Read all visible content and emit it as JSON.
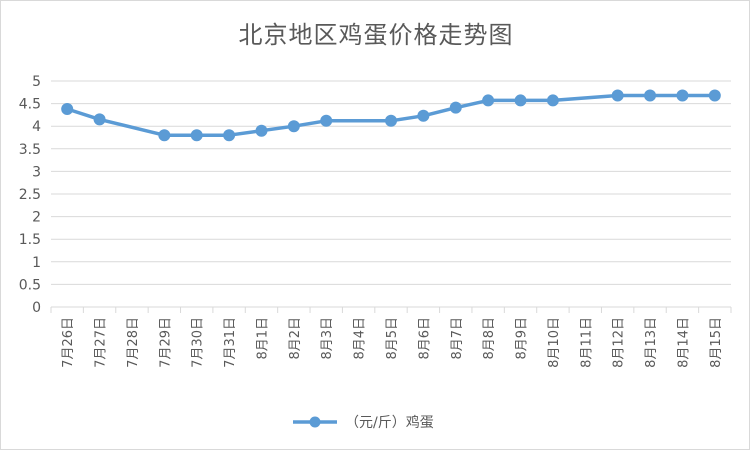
{
  "chart_data": {
    "type": "line",
    "title": "北京地区鸡蛋价格走势图",
    "xlabel": "",
    "ylabel": "",
    "categories": [
      "7月26日",
      "7月27日",
      "7月28日",
      "7月29日",
      "7月30日",
      "7月31日",
      "8月1日",
      "8月2日",
      "8月3日",
      "8月4日",
      "8月5日",
      "8月6日",
      "8月7日",
      "8月8日",
      "8月9日",
      "8月10日",
      "8月11日",
      "8月12日",
      "8月13日",
      "8月14日",
      "8月15日"
    ],
    "series": [
      {
        "name": "（元/斤）鸡蛋",
        "values": [
          4.38,
          4.15,
          null,
          3.8,
          3.8,
          3.8,
          3.9,
          4.0,
          4.12,
          null,
          4.12,
          4.23,
          4.41,
          4.57,
          4.57,
          4.57,
          null,
          4.68,
          4.68,
          4.68,
          4.68
        ]
      }
    ],
    "ylim": [
      0,
      5
    ],
    "yticks": [
      0,
      0.5,
      1,
      1.5,
      2,
      2.5,
      3,
      3.5,
      4,
      4.5,
      5
    ],
    "grid": true,
    "legend": "bottom",
    "color": "#5b9bd5"
  }
}
